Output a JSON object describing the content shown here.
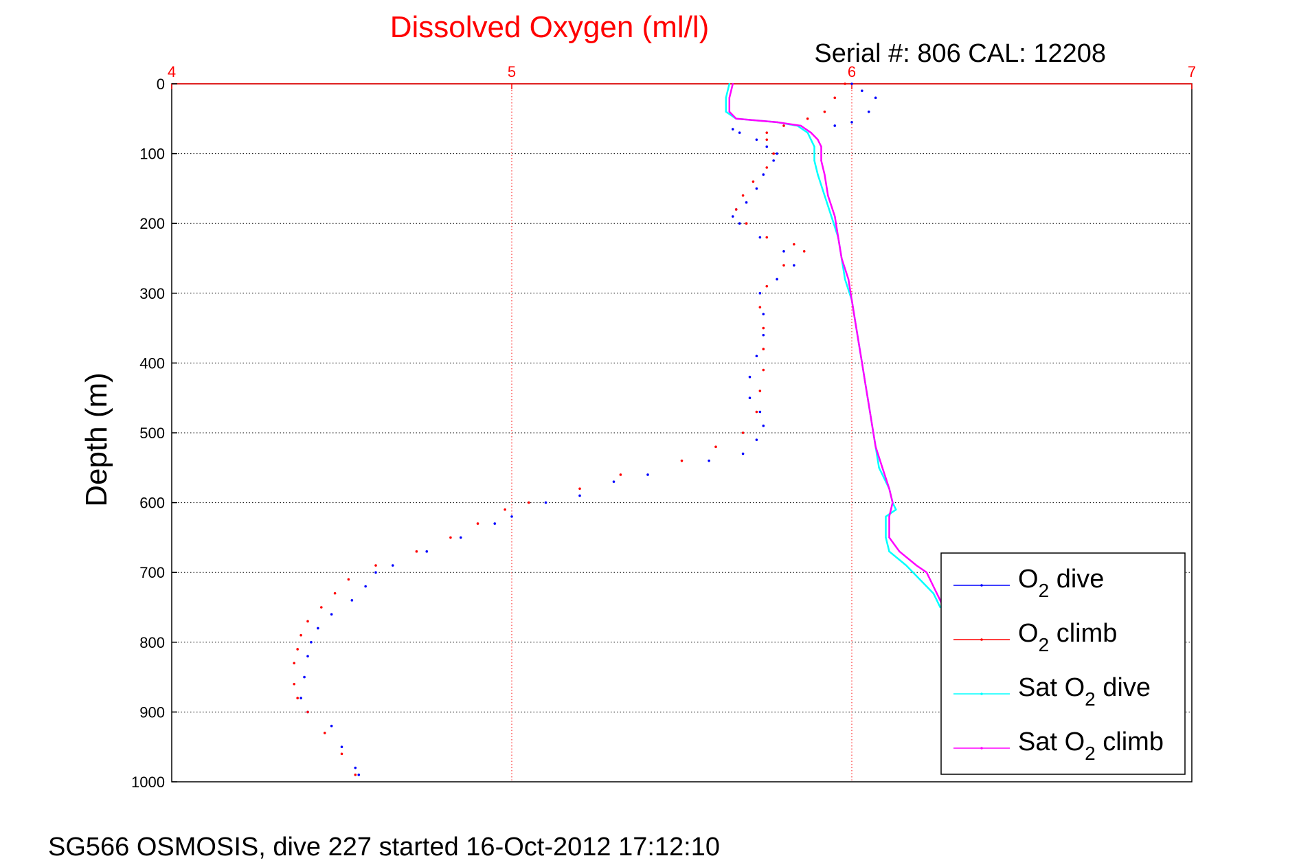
{
  "chart_data": {
    "type": "scatter",
    "title": "Dissolved Oxygen (ml/l)",
    "subtitle": "Serial #: 806  CAL: 12208",
    "xlabel": "",
    "ylabel": "Depth (m)",
    "xlim": [
      4,
      7
    ],
    "ylim": [
      0,
      1000
    ],
    "y_reversed": true,
    "x_axis_position": "top",
    "x_ticks": [
      "4",
      "5",
      "6",
      "7"
    ],
    "y_ticks": [
      "0",
      "100",
      "200",
      "300",
      "400",
      "500",
      "600",
      "700",
      "800",
      "900",
      "1000"
    ],
    "grid": true,
    "legend_position": "bottom-right",
    "colors": {
      "title": "#ff0000",
      "x_axis": "#ff0000",
      "o2_dive": "#0000ff",
      "o2_climb": "#ff0000",
      "sat_dive": "#00ffff",
      "sat_climb": "#ff00ff"
    },
    "series": [
      {
        "key": "o2_dive",
        "legend": {
          "prefix": "O",
          "sub": "2",
          "suffix": " dive"
        },
        "style": "dots",
        "color": "#0000ff",
        "points": [
          [
            6.0,
            0
          ],
          [
            6.03,
            10
          ],
          [
            6.07,
            20
          ],
          [
            6.05,
            40
          ],
          [
            6.0,
            55
          ],
          [
            5.95,
            60
          ],
          [
            5.65,
            65
          ],
          [
            5.67,
            70
          ],
          [
            5.72,
            80
          ],
          [
            5.75,
            90
          ],
          [
            5.78,
            100
          ],
          [
            5.77,
            110
          ],
          [
            5.74,
            130
          ],
          [
            5.72,
            150
          ],
          [
            5.69,
            170
          ],
          [
            5.66,
            180
          ],
          [
            5.65,
            190
          ],
          [
            5.67,
            200
          ],
          [
            5.73,
            220
          ],
          [
            5.8,
            240
          ],
          [
            5.83,
            260
          ],
          [
            5.78,
            280
          ],
          [
            5.73,
            300
          ],
          [
            5.74,
            330
          ],
          [
            5.74,
            360
          ],
          [
            5.72,
            390
          ],
          [
            5.7,
            420
          ],
          [
            5.7,
            450
          ],
          [
            5.73,
            470
          ],
          [
            5.74,
            490
          ],
          [
            5.72,
            510
          ],
          [
            5.68,
            530
          ],
          [
            5.58,
            540
          ],
          [
            5.4,
            560
          ],
          [
            5.3,
            570
          ],
          [
            5.2,
            590
          ],
          [
            5.1,
            600
          ],
          [
            5.0,
            620
          ],
          [
            4.95,
            630
          ],
          [
            4.85,
            650
          ],
          [
            4.75,
            670
          ],
          [
            4.65,
            690
          ],
          [
            4.6,
            700
          ],
          [
            4.57,
            720
          ],
          [
            4.53,
            740
          ],
          [
            4.47,
            760
          ],
          [
            4.43,
            780
          ],
          [
            4.41,
            800
          ],
          [
            4.4,
            820
          ],
          [
            4.39,
            850
          ],
          [
            4.38,
            880
          ],
          [
            4.4,
            900
          ],
          [
            4.47,
            920
          ],
          [
            4.5,
            950
          ],
          [
            4.54,
            980
          ],
          [
            4.55,
            990
          ]
        ]
      },
      {
        "key": "o2_climb",
        "legend": {
          "prefix": "O",
          "sub": "2",
          "suffix": " climb"
        },
        "style": "dots",
        "color": "#ff0000",
        "points": [
          [
            5.98,
            0
          ],
          [
            5.95,
            20
          ],
          [
            5.92,
            40
          ],
          [
            5.87,
            50
          ],
          [
            5.8,
            60
          ],
          [
            5.75,
            70
          ],
          [
            5.75,
            80
          ],
          [
            5.77,
            100
          ],
          [
            5.75,
            120
          ],
          [
            5.71,
            140
          ],
          [
            5.68,
            160
          ],
          [
            5.66,
            180
          ],
          [
            5.69,
            200
          ],
          [
            5.75,
            220
          ],
          [
            5.83,
            230
          ],
          [
            5.86,
            240
          ],
          [
            5.8,
            260
          ],
          [
            5.75,
            290
          ],
          [
            5.73,
            320
          ],
          [
            5.74,
            350
          ],
          [
            5.74,
            380
          ],
          [
            5.74,
            410
          ],
          [
            5.73,
            440
          ],
          [
            5.72,
            470
          ],
          [
            5.68,
            500
          ],
          [
            5.6,
            520
          ],
          [
            5.5,
            540
          ],
          [
            5.32,
            560
          ],
          [
            5.2,
            580
          ],
          [
            5.05,
            600
          ],
          [
            4.98,
            610
          ],
          [
            4.9,
            630
          ],
          [
            4.82,
            650
          ],
          [
            4.72,
            670
          ],
          [
            4.6,
            690
          ],
          [
            4.52,
            710
          ],
          [
            4.48,
            730
          ],
          [
            4.44,
            750
          ],
          [
            4.4,
            770
          ],
          [
            4.38,
            790
          ],
          [
            4.37,
            810
          ],
          [
            4.36,
            830
          ],
          [
            4.36,
            860
          ],
          [
            4.37,
            880
          ],
          [
            4.4,
            900
          ],
          [
            4.45,
            930
          ],
          [
            4.5,
            960
          ],
          [
            4.54,
            990
          ]
        ]
      },
      {
        "key": "sat_dive",
        "legend": {
          "prefix": "Sat O",
          "sub": "2",
          "suffix": " dive"
        },
        "style": "line",
        "color": "#00ffff",
        "points": [
          [
            5.64,
            0
          ],
          [
            5.63,
            20
          ],
          [
            5.63,
            40
          ],
          [
            5.66,
            50
          ],
          [
            5.78,
            55
          ],
          [
            5.84,
            60
          ],
          [
            5.87,
            70
          ],
          [
            5.88,
            80
          ],
          [
            5.89,
            90
          ],
          [
            5.89,
            110
          ],
          [
            5.9,
            130
          ],
          [
            5.92,
            160
          ],
          [
            5.94,
            190
          ],
          [
            5.96,
            220
          ],
          [
            5.97,
            250
          ],
          [
            5.98,
            280
          ],
          [
            6.0,
            310
          ],
          [
            6.01,
            340
          ],
          [
            6.02,
            370
          ],
          [
            6.03,
            400
          ],
          [
            6.04,
            430
          ],
          [
            6.05,
            460
          ],
          [
            6.06,
            490
          ],
          [
            6.07,
            520
          ],
          [
            6.08,
            550
          ],
          [
            6.11,
            580
          ],
          [
            6.12,
            600
          ],
          [
            6.13,
            610
          ],
          [
            6.1,
            620
          ],
          [
            6.1,
            650
          ],
          [
            6.11,
            670
          ],
          [
            6.16,
            690
          ],
          [
            6.2,
            710
          ],
          [
            6.24,
            730
          ],
          [
            6.25,
            740
          ],
          [
            6.26,
            750
          ]
        ]
      },
      {
        "key": "sat_climb",
        "legend": {
          "prefix": "Sat O",
          "sub": "2",
          "suffix": " climb"
        },
        "style": "line",
        "color": "#ff00ff",
        "points": [
          [
            5.65,
            0
          ],
          [
            5.64,
            20
          ],
          [
            5.64,
            40
          ],
          [
            5.66,
            50
          ],
          [
            5.78,
            55
          ],
          [
            5.85,
            60
          ],
          [
            5.88,
            70
          ],
          [
            5.9,
            80
          ],
          [
            5.91,
            90
          ],
          [
            5.91,
            110
          ],
          [
            5.92,
            130
          ],
          [
            5.93,
            160
          ],
          [
            5.95,
            190
          ],
          [
            5.96,
            220
          ],
          [
            5.97,
            250
          ],
          [
            5.99,
            280
          ],
          [
            6.0,
            310
          ],
          [
            6.01,
            340
          ],
          [
            6.02,
            370
          ],
          [
            6.03,
            400
          ],
          [
            6.04,
            430
          ],
          [
            6.05,
            460
          ],
          [
            6.06,
            490
          ],
          [
            6.07,
            520
          ],
          [
            6.09,
            550
          ],
          [
            6.11,
            580
          ],
          [
            6.12,
            600
          ],
          [
            6.11,
            620
          ],
          [
            6.11,
            650
          ],
          [
            6.14,
            670
          ],
          [
            6.19,
            690
          ],
          [
            6.22,
            700
          ],
          [
            6.24,
            720
          ],
          [
            6.26,
            740
          ],
          [
            6.27,
            750
          ]
        ]
      }
    ]
  },
  "footer": "SG566 OSMOSIS, dive 227 started 16-Oct-2012 17:12:10"
}
